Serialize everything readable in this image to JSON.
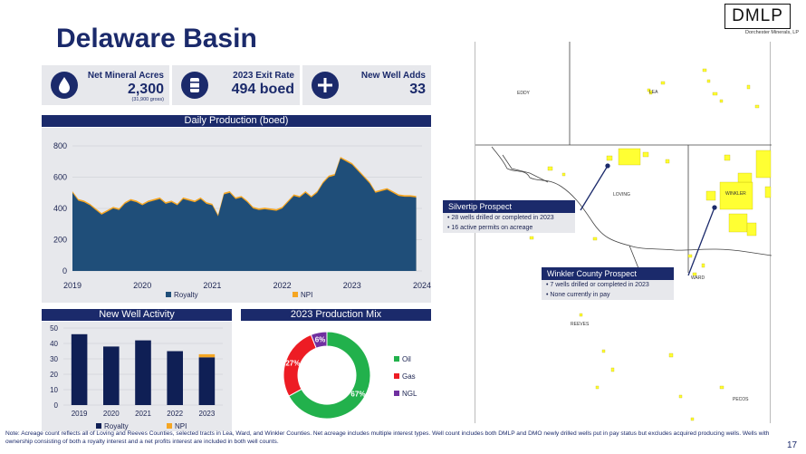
{
  "page": {
    "title": "Delaware Basin",
    "page_number": "17",
    "note": "Note: Acreage count reflects all of Loving and Reeves Counties, selected tracts in Lea, Ward, and Winkler Counties. Net acreage includes multiple interest types.  Well count includes both DMLP and DMO newly drilled wells put in pay status but excludes acquired producing wells. Wells with ownership consisting of both a royalty interest and a net profits interest are included in both well counts."
  },
  "logo": {
    "text": "DMLP",
    "subtitle": "Dorchester Minerals, LP"
  },
  "kpis": [
    {
      "label": "Net Mineral Acres",
      "value": "2,300",
      "sub": "(31,900 gross)",
      "icon": "oil-drop-icon"
    },
    {
      "label": "2023 Exit Rate",
      "value": "494 boed",
      "sub": "",
      "icon": "oil-barrel-icon"
    },
    {
      "label": "New Well Adds",
      "value": "33",
      "sub": "",
      "icon": "plus-icon"
    }
  ],
  "colors": {
    "navy": "#1b2a6b",
    "royalty": "#1f4e79",
    "npi": "#f5a623",
    "oil": "#22b14c",
    "gas": "#ed1c24",
    "ngl": "#7030a0",
    "tract": "#ffff33"
  },
  "production_chart": {
    "title": "Daily Production (boed)",
    "legend": [
      "Royalty",
      "NPI"
    ]
  },
  "new_wells_chart": {
    "title": "New Well Activity",
    "legend": [
      "Royalty",
      "NPI"
    ]
  },
  "mix_chart": {
    "title": "2023 Production Mix",
    "legend": [
      "Oil",
      "Gas",
      "NGL"
    ]
  },
  "chart_data": [
    {
      "type": "area",
      "title": "Daily Production (boed)",
      "x_ticks": [
        "2019",
        "2020",
        "2021",
        "2022",
        "2023",
        "2024"
      ],
      "ylim": [
        0,
        800
      ],
      "y_ticks": [
        "0",
        "200",
        "400",
        "600",
        "800"
      ],
      "series": [
        {
          "name": "Royalty",
          "values": [
            500,
            450,
            440,
            420,
            390,
            360,
            380,
            400,
            390,
            430,
            450,
            440,
            420,
            440,
            450,
            460,
            430,
            440,
            420,
            460,
            450,
            440,
            460,
            430,
            420,
            350,
            490,
            500,
            460,
            470,
            440,
            400,
            390,
            395,
            390,
            385,
            400,
            440,
            480,
            470,
            500,
            470,
            500,
            560,
            600,
            610,
            720,
            700,
            680,
            640,
            600,
            560,
            500,
            510,
            520,
            500,
            480,
            475,
            475,
            470
          ],
          "x_start": "2019-01"
        },
        {
          "name": "NPI",
          "values": [
            10,
            10,
            10,
            10,
            10,
            10,
            10,
            10,
            10,
            10,
            10,
            10,
            10,
            10,
            10,
            10,
            10,
            10,
            10,
            10,
            10,
            10,
            10,
            10,
            10,
            10,
            10,
            10,
            10,
            10,
            10,
            10,
            10,
            10,
            10,
            10,
            10,
            10,
            10,
            10,
            10,
            10,
            10,
            10,
            10,
            10,
            10,
            10,
            10,
            10,
            10,
            10,
            10,
            10,
            10,
            10,
            10,
            10,
            10,
            10
          ]
        }
      ]
    },
    {
      "type": "bar",
      "title": "New Well Activity",
      "categories": [
        "2019",
        "2020",
        "2021",
        "2022",
        "2023"
      ],
      "ylim": [
        0,
        50
      ],
      "y_ticks": [
        "0",
        "10",
        "20",
        "30",
        "40",
        "50"
      ],
      "series": [
        {
          "name": "Royalty",
          "values": [
            46,
            38,
            42,
            35,
            31
          ]
        },
        {
          "name": "NPI",
          "values": [
            0,
            0,
            0,
            0,
            2
          ]
        }
      ]
    },
    {
      "type": "pie",
      "title": "2023 Production Mix",
      "categories": [
        "Oil",
        "Gas",
        "NGL"
      ],
      "values": [
        67,
        27,
        6
      ],
      "labels": [
        "67%",
        "27%",
        "6%"
      ]
    }
  ],
  "map": {
    "counties": [
      "EDDY",
      "LEA",
      "LOVING",
      "WINKLER",
      "WARD",
      "REEVES",
      "PECOS"
    ],
    "callouts": [
      {
        "title": "Silvertip Prospect",
        "bullets": [
          "28 wells drilled or completed in 2023",
          "16 active permits on acreage"
        ]
      },
      {
        "title": "Winkler County Prospect",
        "bullets": [
          "7 wells drilled or completed in 2023",
          "None currently in pay"
        ]
      }
    ]
  }
}
